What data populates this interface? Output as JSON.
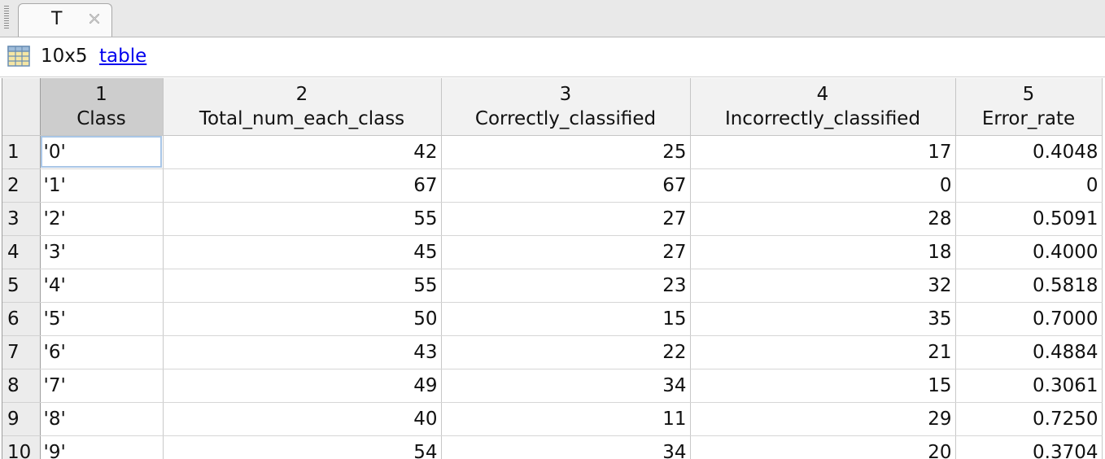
{
  "tab": {
    "label": "T",
    "close_icon": "close-icon"
  },
  "info": {
    "icon": "table-grid-icon",
    "dimensions": "10x5",
    "type_link": "table"
  },
  "columns": [
    {
      "index": "1",
      "name": "Class"
    },
    {
      "index": "2",
      "name": "Total_num_each_class"
    },
    {
      "index": "3",
      "name": "Correctly_classified"
    },
    {
      "index": "4",
      "name": "Incorrectly_classified"
    },
    {
      "index": "5",
      "name": "Error_rate"
    }
  ],
  "rows": [
    {
      "row": "1",
      "cells": [
        "'0'",
        "42",
        "25",
        "17",
        "0.4048"
      ]
    },
    {
      "row": "2",
      "cells": [
        "'1'",
        "67",
        "67",
        "0",
        "0"
      ]
    },
    {
      "row": "3",
      "cells": [
        "'2'",
        "55",
        "27",
        "28",
        "0.5091"
      ]
    },
    {
      "row": "4",
      "cells": [
        "'3'",
        "45",
        "27",
        "18",
        "0.4000"
      ]
    },
    {
      "row": "5",
      "cells": [
        "'4'",
        "55",
        "23",
        "32",
        "0.5818"
      ]
    },
    {
      "row": "6",
      "cells": [
        "'5'",
        "50",
        "15",
        "35",
        "0.7000"
      ]
    },
    {
      "row": "7",
      "cells": [
        "'6'",
        "43",
        "22",
        "21",
        "0.4884"
      ]
    },
    {
      "row": "8",
      "cells": [
        "'7'",
        "49",
        "34",
        "15",
        "0.3061"
      ]
    },
    {
      "row": "9",
      "cells": [
        "'8'",
        "40",
        "11",
        "29",
        "0.7250"
      ]
    },
    {
      "row": "10",
      "cells": [
        "'9'",
        "54",
        "34",
        "20",
        "0.3704"
      ]
    }
  ],
  "colors": {
    "link": "#0000ee",
    "header_bg": "#f2f2f2",
    "selected_header_bg": "#cdcdcd",
    "row_header_bg": "#ececec",
    "focus_outline": "#a9c6e6"
  }
}
